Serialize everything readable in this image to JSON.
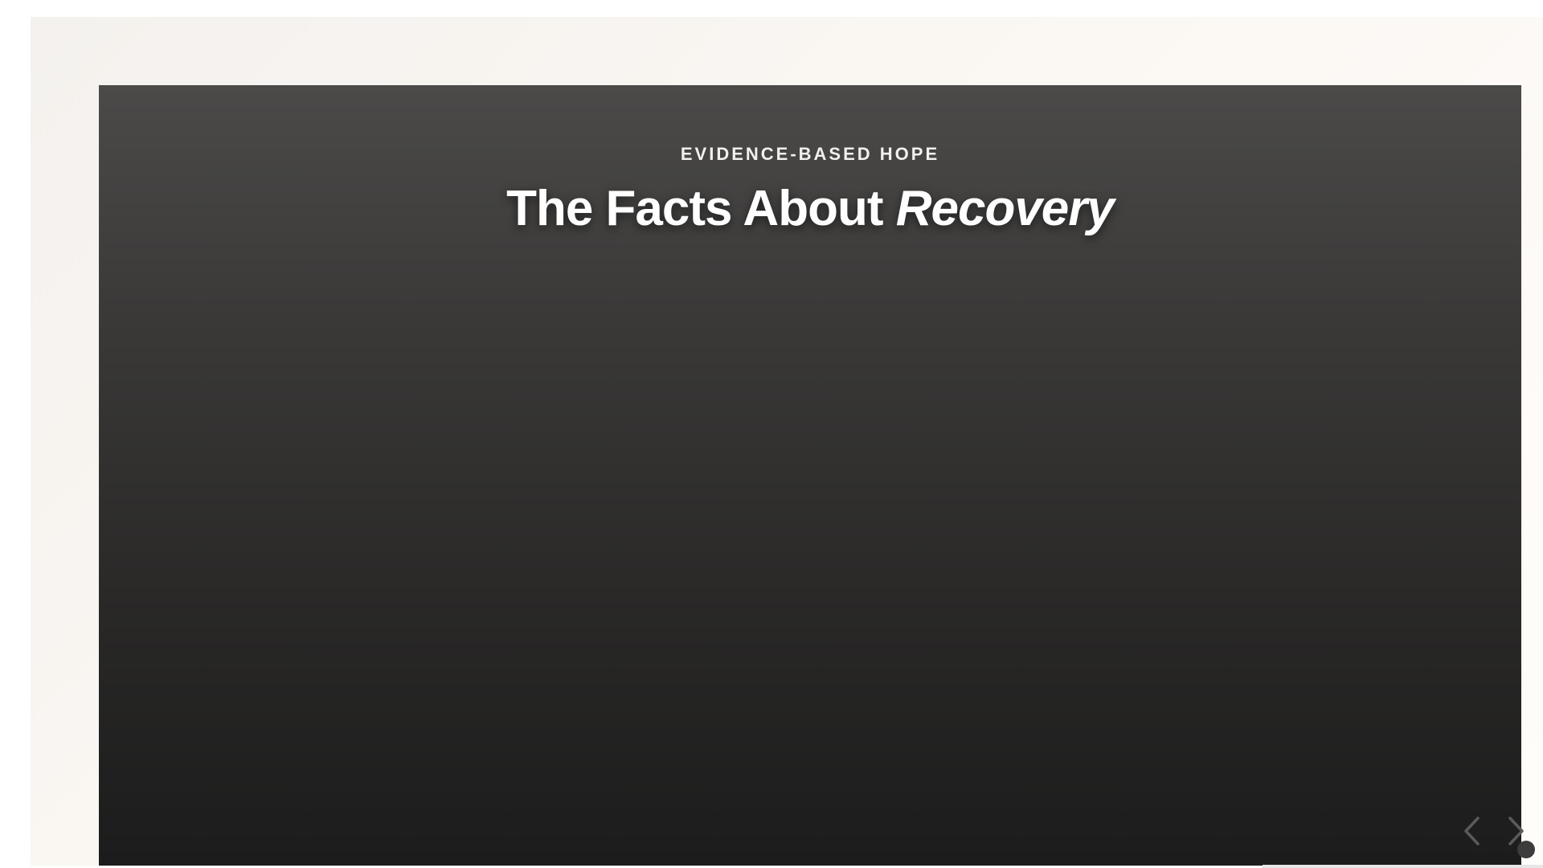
{
  "hero": {
    "eyebrow": "EVIDENCE-BASED HOPE",
    "title_main": "The Facts About ",
    "title_emphasis": "Recovery"
  },
  "carousel": {
    "prev_icon": "chevron-left-icon",
    "next_icon": "chevron-right-icon"
  },
  "colors": {
    "slide_top": "#4b4a49",
    "slide_bottom": "#1c1c1c",
    "text": "#ffffff"
  }
}
